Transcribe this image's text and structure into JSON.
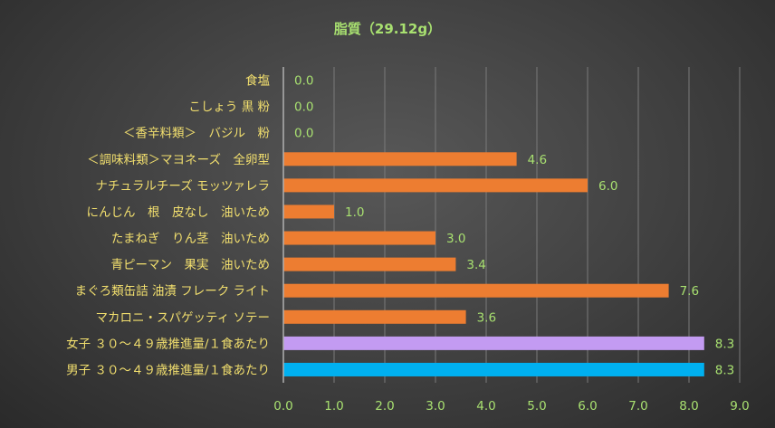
{
  "chart_data": {
    "type": "bar",
    "orientation": "horizontal",
    "title": "脂質（29.12g）",
    "categories": [
      "食塩",
      "こしょう 黒 粉",
      "＜香辛料類＞　バジル　粉",
      "＜調味料類＞マヨネーズ　全卵型",
      "ナチュラルチーズ モッツァレラ",
      "にんじん　根　皮なし　油いため",
      "たまねぎ　りん茎　油いため",
      "青ピーマン　果実　油いため",
      "まぐろ類缶詰 油漬 フレーク ライト",
      "マカロニ・スパゲッティ ソテー",
      "女子 ３０～４９歳推進量/１食あたり",
      "男子 ３０～４９歳推進量/１食あたり"
    ],
    "values": [
      0.0,
      0.0,
      0.0,
      4.6,
      6.0,
      1.0,
      3.0,
      3.4,
      7.6,
      3.6,
      8.3,
      8.3
    ],
    "value_labels": [
      "0.0",
      "0.0",
      "0.0",
      "4.6",
      "6.0",
      "1.0",
      "3.0",
      "3.4",
      "7.6",
      "3.6",
      "8.3",
      "8.3"
    ],
    "bar_colors": [
      "#ed7d31",
      "#ed7d31",
      "#ed7d31",
      "#ed7d31",
      "#ed7d31",
      "#ed7d31",
      "#ed7d31",
      "#ed7d31",
      "#ed7d31",
      "#ed7d31",
      "#c39bf2",
      "#00b0f0"
    ],
    "xlim": [
      0,
      9
    ],
    "x_ticks": [
      "0.0",
      "1.0",
      "2.0",
      "3.0",
      "4.0",
      "5.0",
      "6.0",
      "7.0",
      "8.0",
      "9.0"
    ],
    "grid": true,
    "legend": "none"
  },
  "colors": {
    "title": "#a8e070",
    "category_text": "#f2df6e",
    "value_text": "#a8e070",
    "grid": "#7a7a7a",
    "axis": "#b0b0b0"
  }
}
